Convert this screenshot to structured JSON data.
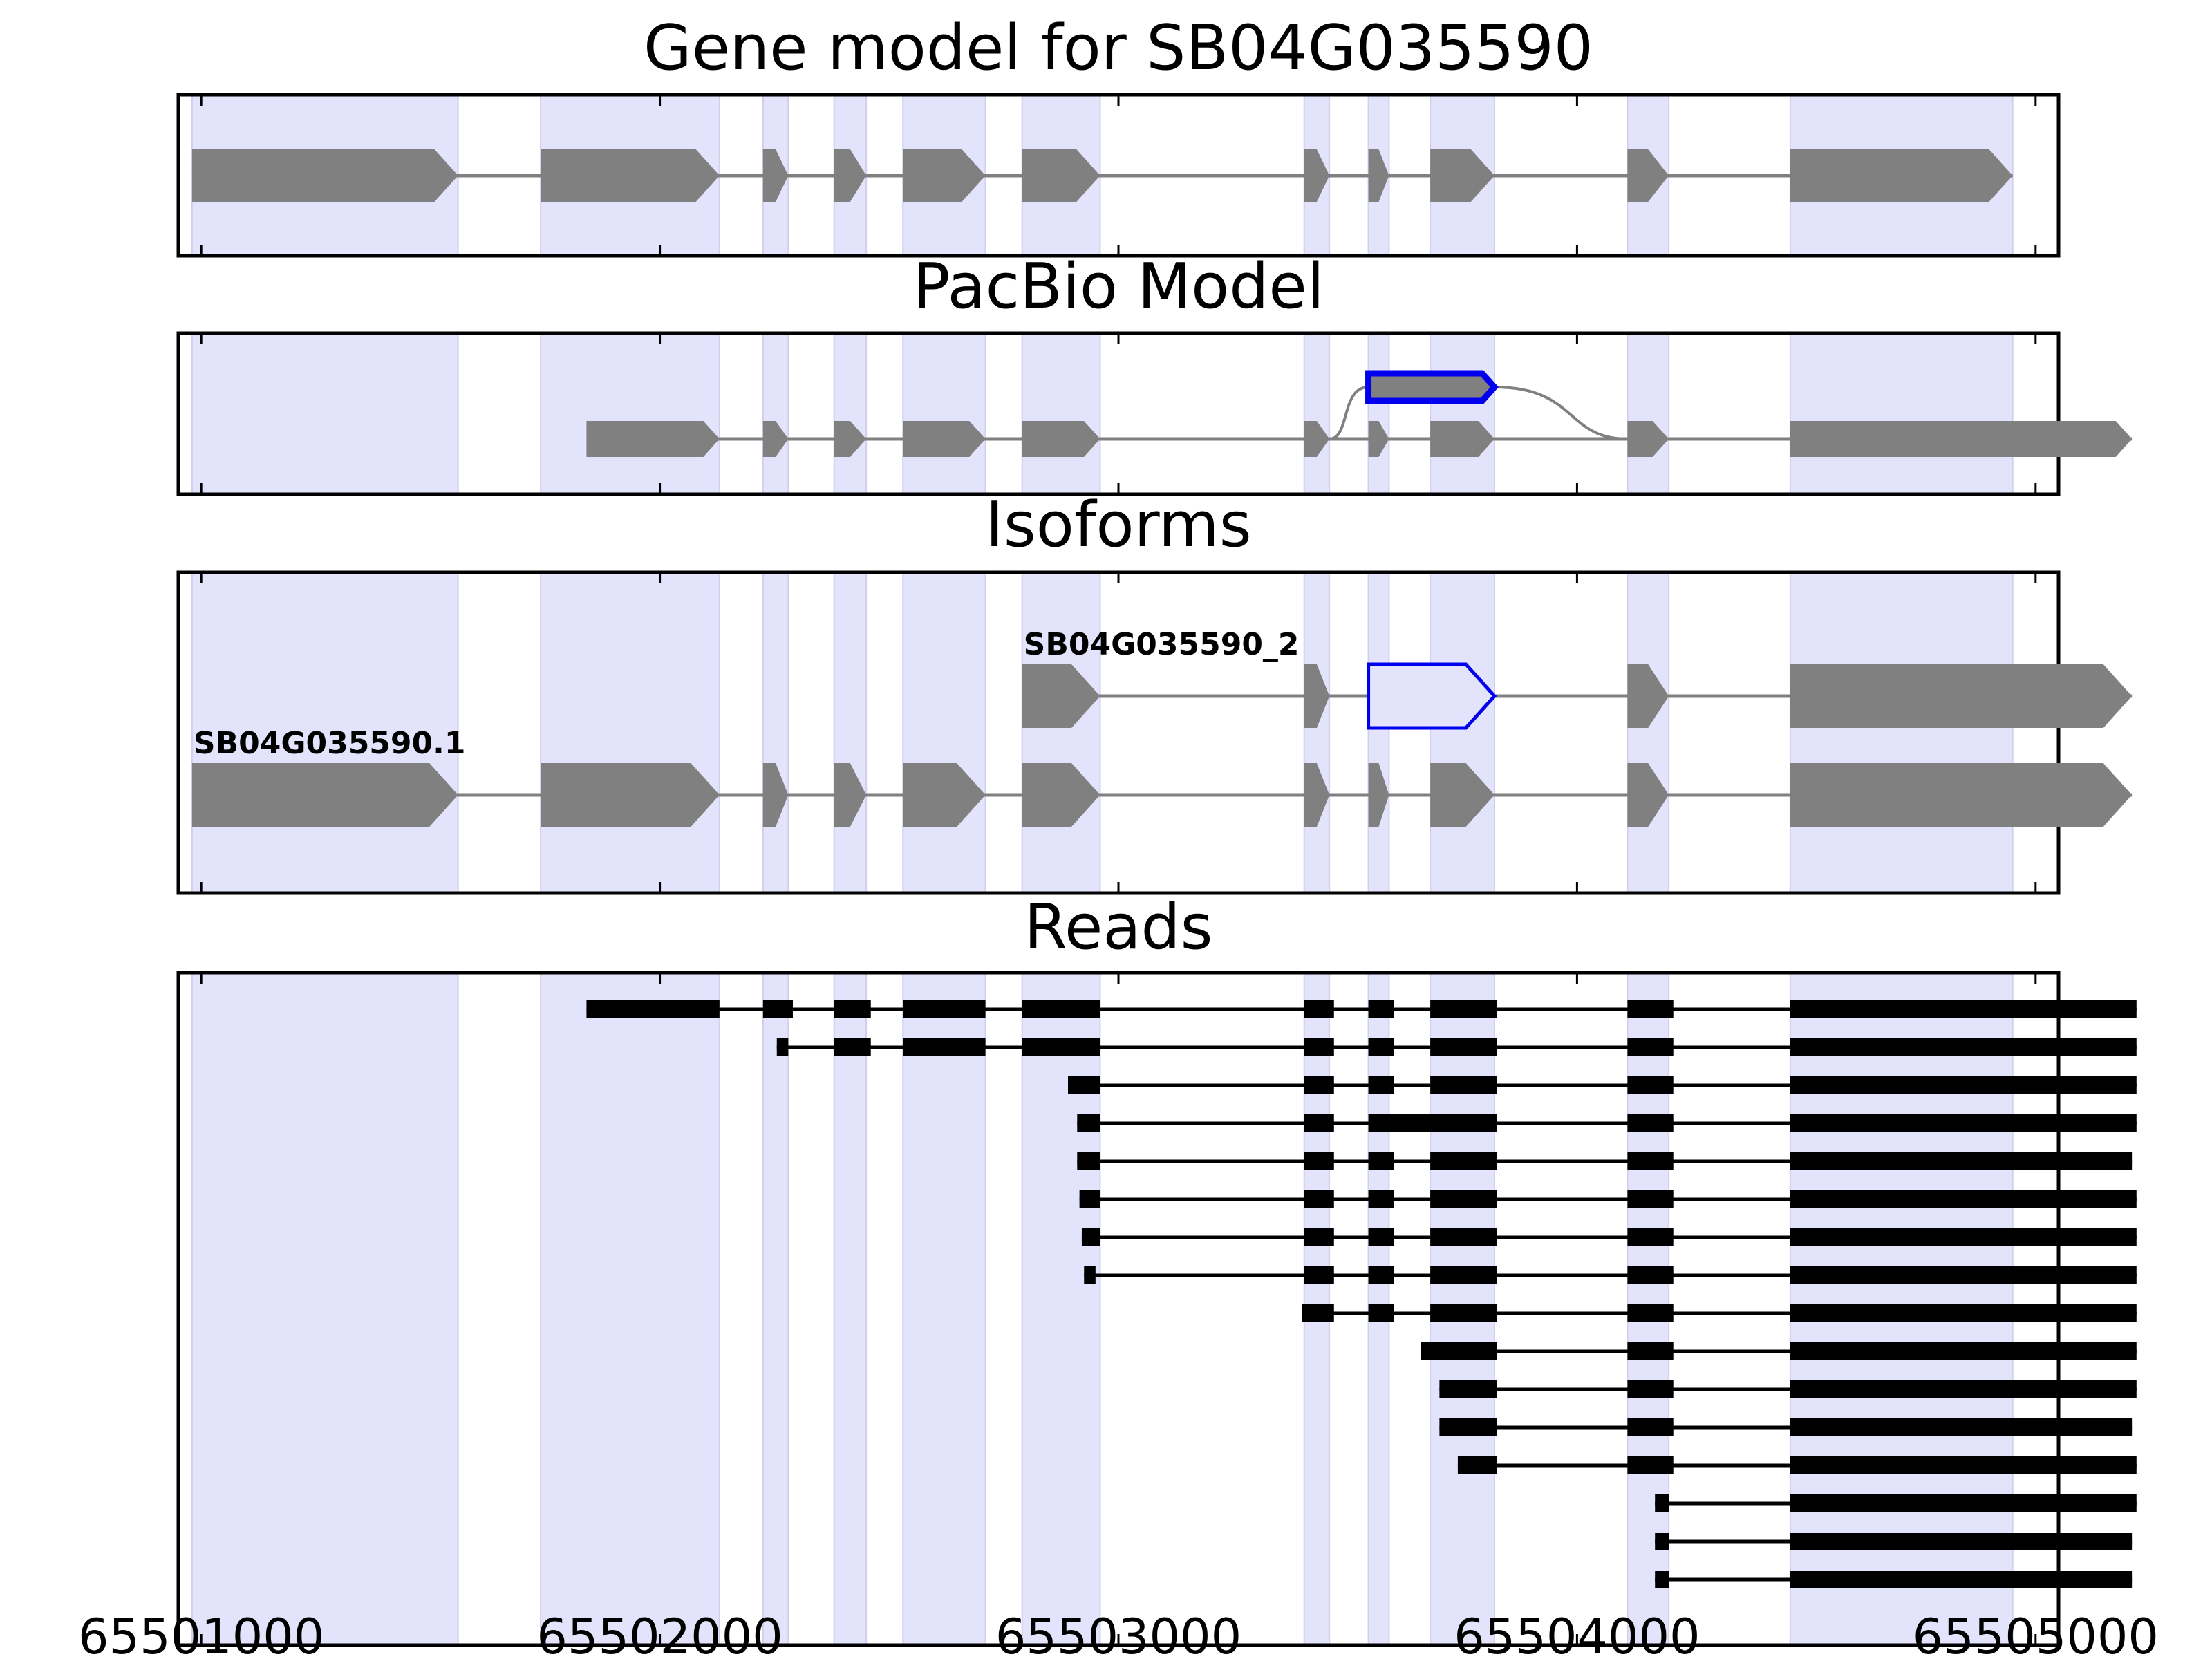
{
  "chart_data": {
    "type": "gene-track",
    "gene_id": "SB04G035590",
    "xlim": [
      65500950,
      65505050
    ],
    "xticks": [
      65501000,
      65502000,
      65503000,
      65504000,
      65505000
    ],
    "colors": {
      "shade": "#e3e3fb",
      "feature": "#808080",
      "highlight": "#0000ee",
      "read": "#000000"
    },
    "exon_shading": [
      [
        65500980,
        65501560
      ],
      [
        65501740,
        65502130
      ],
      [
        65502225,
        65502280
      ],
      [
        65502380,
        65502450
      ],
      [
        65502530,
        65502710
      ],
      [
        65502790,
        65502960
      ],
      [
        65503405,
        65503460
      ],
      [
        65503545,
        65503590
      ],
      [
        65503680,
        65503820
      ],
      [
        65504110,
        65504200
      ],
      [
        65504465,
        65504950
      ]
    ],
    "panels": [
      {
        "title": "Gene model for SB04G035590",
        "tracks": [
          {
            "strand": "+",
            "highlight": false,
            "exons": [
              [
                65500980,
                65501560
              ],
              [
                65501740,
                65502130
              ],
              [
                65502225,
                65502280
              ],
              [
                65502380,
                65502450
              ],
              [
                65502530,
                65502710
              ],
              [
                65502790,
                65502960
              ],
              [
                65503405,
                65503460
              ],
              [
                65503545,
                65503590
              ],
              [
                65503680,
                65503820
              ],
              [
                65504110,
                65504200
              ],
              [
                65504465,
                65504950
              ]
            ]
          }
        ]
      },
      {
        "title": "PacBio Model",
        "tracks": [
          {
            "strand": "+",
            "highlight": false,
            "exons": [
              [
                65501840,
                65502130
              ],
              [
                65502225,
                65502280
              ],
              [
                65502380,
                65502450
              ],
              [
                65502530,
                65502710
              ],
              [
                65502790,
                65502960
              ],
              [
                65503405,
                65503460
              ],
              [
                65503545,
                65503590
              ],
              [
                65503680,
                65503820
              ],
              [
                65504110,
                65504200
              ],
              [
                65504465,
                65505210
              ]
            ]
          },
          {
            "strand": "+",
            "highlight": true,
            "exons": [
              [
                65503545,
                65503820
              ]
            ],
            "connects": [
              65503460,
              65504110
            ]
          }
        ]
      },
      {
        "title": "Isoforms",
        "tracks": [
          {
            "label": "SB04G035590_2",
            "strand": "+",
            "highlight_index": 2,
            "exons": [
              [
                65502790,
                65502960
              ],
              [
                65503405,
                65503460
              ],
              [
                65503545,
                65503820
              ],
              [
                65504110,
                65504200
              ],
              [
                65504465,
                65505210
              ]
            ]
          },
          {
            "label": "SB04G035590.1",
            "strand": "+",
            "highlight_index": -1,
            "exons": [
              [
                65500980,
                65501560
              ],
              [
                65501740,
                65502130
              ],
              [
                65502225,
                65502280
              ],
              [
                65502380,
                65502450
              ],
              [
                65502530,
                65502710
              ],
              [
                65502790,
                65502960
              ],
              [
                65503405,
                65503460
              ],
              [
                65503545,
                65503590
              ],
              [
                65503680,
                65503820
              ],
              [
                65504110,
                65504200
              ],
              [
                65504465,
                65505210
              ]
            ]
          }
        ]
      },
      {
        "title": "Reads",
        "reads": [
          [
            [
              65501840,
              65502130
            ],
            [
              65502225,
              65502290
            ],
            [
              65502380,
              65502460
            ],
            [
              65502530,
              65502710
            ],
            [
              65502790,
              65502960
            ],
            [
              65503405,
              65503470
            ],
            [
              65503545,
              65503600
            ],
            [
              65503680,
              65503825
            ],
            [
              65504110,
              65504210
            ],
            [
              65504465,
              65505220
            ]
          ],
          [
            [
              65502255,
              65502280
            ],
            [
              65502380,
              65502460
            ],
            [
              65502530,
              65502710
            ],
            [
              65502790,
              65502960
            ],
            [
              65503405,
              65503470
            ],
            [
              65503545,
              65503600
            ],
            [
              65503680,
              65503825
            ],
            [
              65504110,
              65504210
            ],
            [
              65504465,
              65505220
            ]
          ],
          [
            [
              65502890,
              65502960
            ],
            [
              65503405,
              65503470
            ],
            [
              65503545,
              65503600
            ],
            [
              65503680,
              65503825
            ],
            [
              65504110,
              65504210
            ],
            [
              65504465,
              65505220
            ]
          ],
          [
            [
              65502910,
              65502960
            ],
            [
              65503405,
              65503470
            ],
            [
              65503545,
              65503825
            ],
            [
              65504110,
              65504210
            ],
            [
              65504465,
              65505220
            ]
          ],
          [
            [
              65502910,
              65502960
            ],
            [
              65503405,
              65503470
            ],
            [
              65503545,
              65503600
            ],
            [
              65503680,
              65503825
            ],
            [
              65504110,
              65504210
            ],
            [
              65504465,
              65505210
            ]
          ],
          [
            [
              65502915,
              65502960
            ],
            [
              65503405,
              65503470
            ],
            [
              65503545,
              65503600
            ],
            [
              65503680,
              65503825
            ],
            [
              65504110,
              65504210
            ],
            [
              65504465,
              65505220
            ]
          ],
          [
            [
              65502920,
              65502960
            ],
            [
              65503405,
              65503470
            ],
            [
              65503545,
              65503600
            ],
            [
              65503680,
              65503825
            ],
            [
              65504110,
              65504210
            ],
            [
              65504465,
              65505220
            ]
          ],
          [
            [
              65502925,
              65502950
            ],
            [
              65503405,
              65503470
            ],
            [
              65503545,
              65503600
            ],
            [
              65503680,
              65503825
            ],
            [
              65504110,
              65504210
            ],
            [
              65504465,
              65505220
            ]
          ],
          [
            [
              65503400,
              65503470
            ],
            [
              65503545,
              65503600
            ],
            [
              65503680,
              65503825
            ],
            [
              65504110,
              65504210
            ],
            [
              65504465,
              65505220
            ]
          ],
          [
            [
              65503660,
              65503825
            ],
            [
              65504110,
              65504210
            ],
            [
              65504465,
              65505220
            ]
          ],
          [
            [
              65503700,
              65503825
            ],
            [
              65504110,
              65504210
            ],
            [
              65504465,
              65505220
            ]
          ],
          [
            [
              65503700,
              65503825
            ],
            [
              65504110,
              65504210
            ],
            [
              65504465,
              65505210
            ]
          ],
          [
            [
              65503740,
              65503825
            ],
            [
              65504110,
              65504210
            ],
            [
              65504465,
              65505220
            ]
          ],
          [
            [
              65504170,
              65504200
            ],
            [
              65504465,
              65505220
            ]
          ],
          [
            [
              65504170,
              65504200
            ],
            [
              65504465,
              65505210
            ]
          ],
          [
            [
              65504170,
              65504200
            ],
            [
              65504465,
              65505210
            ]
          ]
        ]
      }
    ]
  }
}
